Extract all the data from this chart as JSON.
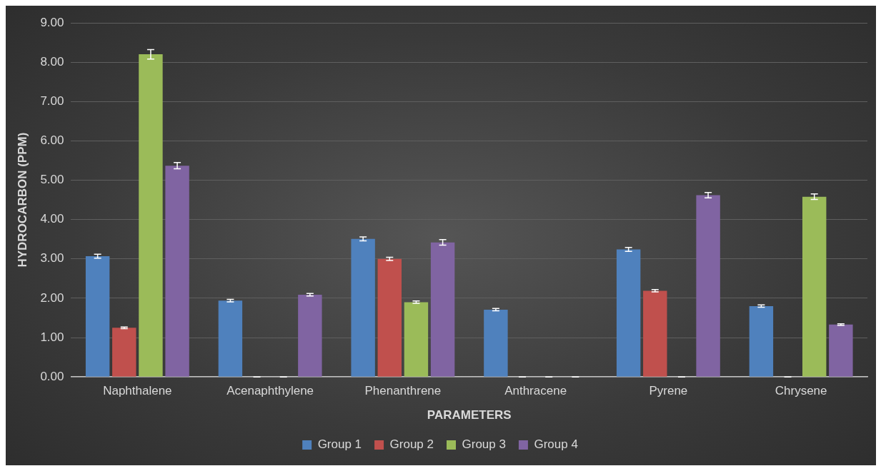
{
  "chart_data": {
    "type": "bar",
    "xlabel": "PARAMETERS",
    "ylabel": "HYDROCARBON (PPM)",
    "categories": [
      "Naphthalene",
      "Acenaphthylene",
      "Phenanthrene",
      "Anthracene",
      "Pyrene",
      "Chrysene"
    ],
    "series": [
      {
        "name": "Group 1",
        "color": "#4f81bd",
        "values": [
          3.07,
          1.94,
          3.51,
          1.71,
          3.24,
          1.8
        ],
        "errors": [
          0.05,
          0.03,
          0.05,
          0.03,
          0.05,
          0.03
        ]
      },
      {
        "name": "Group 2",
        "color": "#c0504d",
        "values": [
          1.25,
          0,
          3.0,
          0,
          2.19,
          0
        ],
        "errors": [
          0.02,
          0,
          0.04,
          0,
          0.03,
          0
        ]
      },
      {
        "name": "Group 3",
        "color": "#9bbb59",
        "values": [
          8.2,
          0,
          1.9,
          0,
          0,
          4.58
        ],
        "errors": [
          0.12,
          0,
          0.03,
          0,
          0,
          0.07
        ]
      },
      {
        "name": "Group 4",
        "color": "#8064a2",
        "values": [
          5.37,
          2.09,
          3.42,
          0,
          4.62,
          1.33
        ],
        "errors": [
          0.08,
          0.03,
          0.07,
          0,
          0.07,
          0.02
        ]
      }
    ],
    "ylim": [
      0,
      9
    ],
    "yticks": [
      {
        "value": 0,
        "label": "0.00"
      },
      {
        "value": 1,
        "label": "1.00"
      },
      {
        "value": 2,
        "label": "2.00"
      },
      {
        "value": 3,
        "label": "3.00"
      },
      {
        "value": 4,
        "label": "4.00"
      },
      {
        "value": 5,
        "label": "5.00"
      },
      {
        "value": 6,
        "label": "6.00"
      },
      {
        "value": 7,
        "label": "7.00"
      },
      {
        "value": 8,
        "label": "8.00"
      },
      {
        "value": 9,
        "label": "9.00"
      }
    ],
    "grid": "y",
    "legend": "bottom"
  }
}
